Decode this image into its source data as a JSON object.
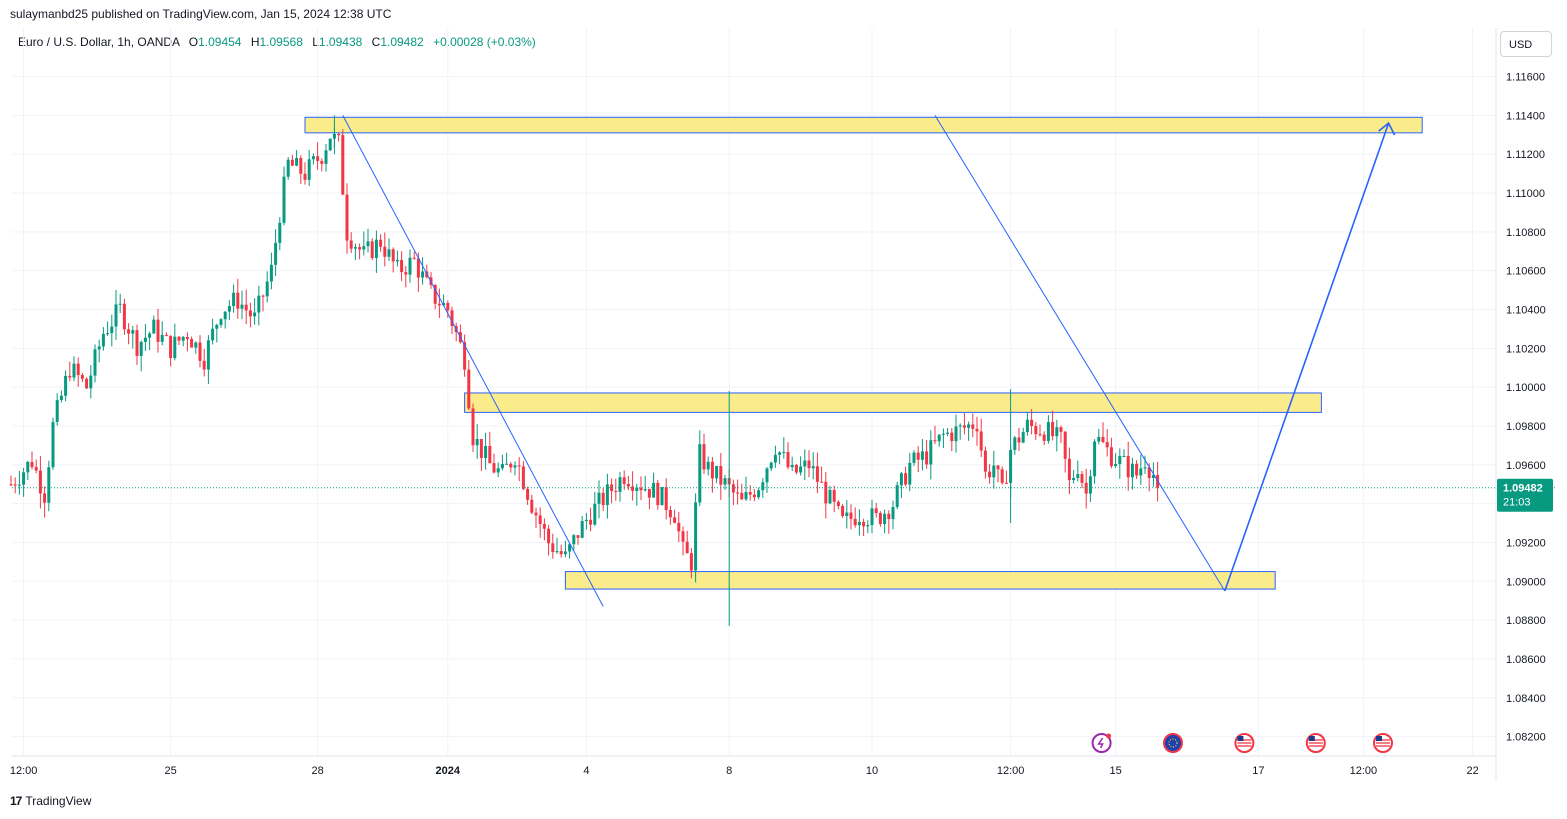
{
  "header": {
    "published_line": "sulaymanbd25 published on TradingView.com, Jan 15, 2024 12:38 UTC"
  },
  "legend": {
    "symbol": "Euro / U.S. Dollar, 1h, OANDA",
    "open_key": "O",
    "open": "1.09454",
    "high_key": "H",
    "high": "1.09568",
    "low_key": "L",
    "low": "1.09438",
    "close_key": "C",
    "close": "1.09482",
    "change": "+0.00028 (+0.03%)"
  },
  "currency_button": "USD",
  "price_label": {
    "price": "1.09482",
    "countdown": "21:03"
  },
  "footer": {
    "brand": "TradingView",
    "brand_mark": "17"
  },
  "colors": {
    "up": "#089981",
    "down": "#f23645",
    "zone_fill": "#fbec8b",
    "zone_border": "#2962ff",
    "line": "#2962ff",
    "grid": "#f0f3fa"
  },
  "chart_data": {
    "type": "candlestick",
    "symbol": "EURUSD",
    "timeframe": "1h",
    "y_axis": {
      "range": [
        1.081,
        1.1185
      ],
      "ticks": [
        "1.11600",
        "1.11400",
        "1.11200",
        "1.11000",
        "1.10800",
        "1.10600",
        "1.10400",
        "1.10200",
        "1.10000",
        "1.09800",
        "1.09600",
        "1.09400",
        "1.09200",
        "1.09000",
        "1.08800",
        "1.08600",
        "1.08400",
        "1.08200"
      ],
      "tick_values": [
        1.116,
        1.114,
        1.112,
        1.11,
        1.108,
        1.106,
        1.104,
        1.102,
        1.1,
        1.098,
        1.096,
        1.094,
        1.092,
        1.09,
        1.088,
        1.086,
        1.084,
        1.082
      ]
    },
    "x_axis": {
      "tick_labels": [
        "12:00",
        "25",
        "28",
        "2024",
        "4",
        "8",
        "10",
        "12:00",
        "15",
        "17",
        "12:00",
        "22"
      ],
      "tick_index": [
        3,
        38,
        73,
        104,
        137,
        171,
        205,
        238,
        263,
        297,
        322,
        348
      ]
    },
    "price_path": [
      [
        0,
        1.095
      ],
      [
        5,
        1.0962
      ],
      [
        8,
        1.0945
      ],
      [
        10,
        1.098
      ],
      [
        14,
        1.101
      ],
      [
        18,
        1.1
      ],
      [
        22,
        1.1028
      ],
      [
        26,
        1.104
      ],
      [
        30,
        1.1022
      ],
      [
        34,
        1.103
      ],
      [
        38,
        1.102
      ],
      [
        42,
        1.1028
      ],
      [
        46,
        1.1015
      ],
      [
        50,
        1.104
      ],
      [
        54,
        1.1045
      ],
      [
        58,
        1.1035
      ],
      [
        62,
        1.106
      ],
      [
        64,
        1.109
      ],
      [
        66,
        1.1115
      ],
      [
        70,
        1.111
      ],
      [
        74,
        1.112
      ],
      [
        76,
        1.113
      ],
      [
        78,
        1.1125
      ],
      [
        80,
        1.108
      ],
      [
        84,
        1.1068
      ],
      [
        88,
        1.1075
      ],
      [
        92,
        1.106
      ],
      [
        96,
        1.1065
      ],
      [
        100,
        1.1048
      ],
      [
        104,
        1.104
      ],
      [
        108,
        1.1015
      ],
      [
        110,
        1.0975
      ],
      [
        114,
        1.096
      ],
      [
        117,
        1.0955
      ],
      [
        120,
        1.0965
      ],
      [
        124,
        1.094
      ],
      [
        128,
        1.092
      ],
      [
        132,
        1.0912
      ],
      [
        135,
        1.0925
      ],
      [
        138,
        1.0935
      ],
      [
        142,
        1.0945
      ],
      [
        146,
        1.0955
      ],
      [
        150,
        1.095
      ],
      [
        154,
        1.0945
      ],
      [
        158,
        1.0935
      ],
      [
        160,
        1.0915
      ],
      [
        162,
        1.091
      ],
      [
        164,
        1.0965
      ],
      [
        166,
        1.0958
      ],
      [
        170,
        1.095
      ],
      [
        174,
        1.094
      ],
      [
        178,
        1.095
      ],
      [
        182,
        1.097
      ],
      [
        186,
        1.0955
      ],
      [
        190,
        1.096
      ],
      [
        194,
        1.0945
      ],
      [
        198,
        1.093
      ],
      [
        202,
        1.0935
      ],
      [
        206,
        1.0932
      ],
      [
        210,
        1.094
      ],
      [
        214,
        1.096
      ],
      [
        218,
        1.0965
      ],
      [
        222,
        1.0975
      ],
      [
        226,
        1.0978
      ],
      [
        230,
        1.0982
      ],
      [
        232,
        1.0955
      ],
      [
        234,
        1.096
      ],
      [
        236,
        1.0945
      ],
      [
        238,
        1.0968
      ],
      [
        242,
        1.098
      ],
      [
        246,
        1.0978
      ],
      [
        250,
        1.0972
      ],
      [
        252,
        1.095
      ],
      [
        254,
        1.096
      ],
      [
        256,
        1.0945
      ],
      [
        258,
        1.0975
      ],
      [
        262,
        1.0965
      ],
      [
        265,
        1.096
      ],
      [
        268,
        1.0955
      ],
      [
        270,
        1.0963
      ],
      [
        272,
        1.0955
      ],
      [
        273,
        1.0948
      ]
    ],
    "wicks": [
      {
        "index": 171,
        "high": 1.0998,
        "low": 1.0877
      },
      {
        "index": 238,
        "high": 1.0999,
        "low": 1.093
      },
      {
        "index": 77,
        "high": 1.114,
        "low": 1.112
      }
    ],
    "last_price": 1.09482,
    "zones": [
      {
        "from_index": 70,
        "to_index": 336,
        "low": 1.1131,
        "high": 1.1139
      },
      {
        "from_index": 108,
        "to_index": 312,
        "low": 1.0987,
        "high": 1.0997
      },
      {
        "from_index": 132,
        "to_index": 301,
        "low": 1.0896,
        "high": 1.0905
      }
    ],
    "trend_lines": [
      {
        "from": [
          79,
          1.114
        ],
        "to": [
          141,
          1.0887
        ],
        "width": 1
      },
      {
        "from": [
          220,
          1.114
        ],
        "to": [
          289,
          1.0895
        ],
        "width": 1
      },
      {
        "from": [
          289,
          1.0895
        ],
        "to": [
          328,
          1.1136
        ],
        "width": 1.6
      }
    ],
    "event_icons": [
      "lightning-icon",
      "eu-flag-icon",
      "us-flag-icon",
      "us-flag-icon",
      "us-flag-icon"
    ]
  }
}
